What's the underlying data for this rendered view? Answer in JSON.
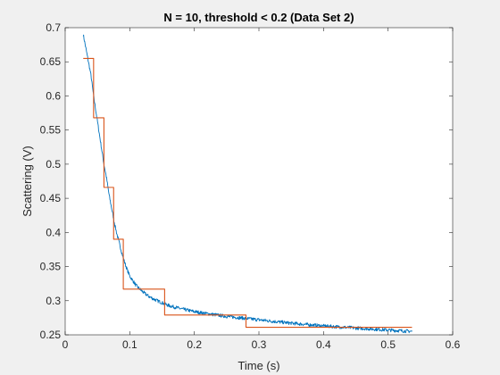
{
  "chart_data": {
    "type": "line",
    "title": "N = 10, threshold < 0.2 (Data Set 2)",
    "xlabel": "Time (s)",
    "ylabel": "Scattering (V)",
    "xlim": [
      0,
      0.6
    ],
    "ylim": [
      0.25,
      0.7
    ],
    "x_ticks": [
      "0",
      "0.1",
      "0.2",
      "0.3",
      "0.4",
      "0.5",
      "0.6"
    ],
    "y_ticks": [
      "0.25",
      "0.3",
      "0.35",
      "0.4",
      "0.45",
      "0.5",
      "0.55",
      "0.6",
      "0.65",
      "0.7"
    ],
    "grid": false,
    "legend": null,
    "series": [
      {
        "color": "#0072BD",
        "style": "line",
        "x": [
          0.028,
          0.032,
          0.036,
          0.04,
          0.044,
          0.048,
          0.052,
          0.056,
          0.06,
          0.064,
          0.068,
          0.072,
          0.076,
          0.08,
          0.085,
          0.09,
          0.095,
          0.1,
          0.11,
          0.12,
          0.13,
          0.14,
          0.15,
          0.16,
          0.18,
          0.2,
          0.22,
          0.25,
          0.28,
          0.3,
          0.35,
          0.4,
          0.45,
          0.5,
          0.537
        ],
        "y": [
          0.69,
          0.67,
          0.65,
          0.63,
          0.6,
          0.575,
          0.55,
          0.525,
          0.5,
          0.48,
          0.455,
          0.435,
          0.415,
          0.398,
          0.38,
          0.362,
          0.348,
          0.336,
          0.322,
          0.313,
          0.306,
          0.301,
          0.297,
          0.293,
          0.288,
          0.284,
          0.281,
          0.277,
          0.274,
          0.272,
          0.267,
          0.263,
          0.26,
          0.257,
          0.255
        ]
      },
      {
        "color": "#D95319",
        "style": "step",
        "x": [
          0.028,
          0.044,
          0.044,
          0.06,
          0.06,
          0.075,
          0.075,
          0.09,
          0.09,
          0.154,
          0.154,
          0.28,
          0.28,
          0.537
        ],
        "y": [
          0.655,
          0.655,
          0.568,
          0.568,
          0.466,
          0.466,
          0.39,
          0.39,
          0.317,
          0.317,
          0.279,
          0.279,
          0.261,
          0.261
        ]
      }
    ]
  }
}
